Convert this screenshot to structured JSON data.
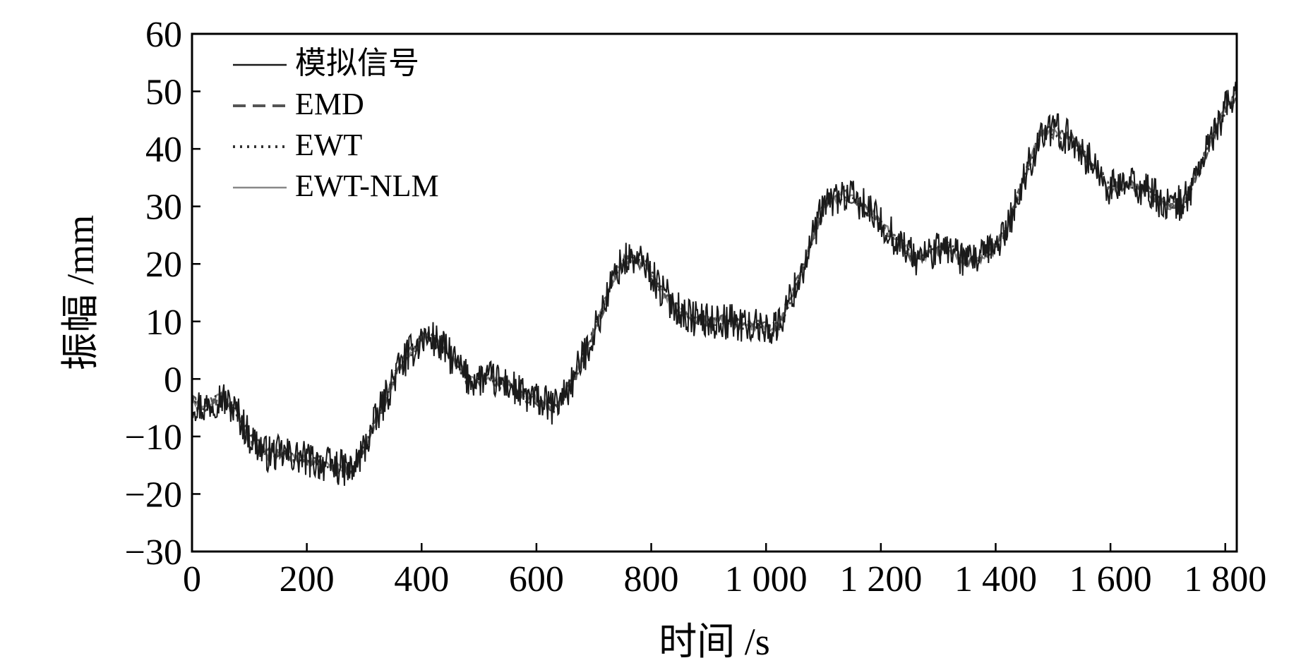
{
  "chart_data": {
    "type": "line",
    "xlabel": "时间 /s",
    "ylabel": "振幅 /mm",
    "xlim": [
      0,
      1820
    ],
    "ylim": [
      -30,
      60
    ],
    "x_ticks": [
      0,
      200,
      400,
      600,
      800,
      1000,
      1200,
      1400,
      1600,
      1800
    ],
    "x_tick_labels": [
      "0",
      "200",
      "400",
      "600",
      "800",
      "1 000",
      "1 200",
      "1 400",
      "1 600",
      "1 800"
    ],
    "y_ticks": [
      -30,
      -20,
      -10,
      0,
      10,
      20,
      30,
      40,
      50,
      60
    ],
    "y_tick_labels": [
      "−30",
      "−20",
      "−10",
      "0",
      "10",
      "20",
      "30",
      "40",
      "50",
      "60"
    ],
    "grid": false,
    "legend_position": "top-left",
    "trend": {
      "x": [
        0,
        20,
        50,
        80,
        100,
        130,
        160,
        200,
        240,
        280,
        300,
        330,
        360,
        400,
        420,
        450,
        480,
        520,
        550,
        580,
        610,
        630,
        660,
        700,
        740,
        760,
        790,
        820,
        860,
        900,
        940,
        980,
        1020,
        1060,
        1100,
        1130,
        1160,
        1200,
        1230,
        1260,
        1290,
        1320,
        1350,
        1390,
        1420,
        1450,
        1480,
        1510,
        1540,
        1570,
        1600,
        1630,
        1660,
        1700,
        1730,
        1760,
        1790,
        1820
      ],
      "y": [
        -4,
        -5,
        -3,
        -6,
        -10,
        -13,
        -13,
        -14,
        -15,
        -16,
        -12,
        -5,
        2,
        7,
        7,
        4,
        0,
        0,
        -1,
        -3,
        -4,
        -5,
        -1,
        8,
        19,
        21,
        20,
        15,
        11,
        10,
        10,
        9,
        9,
        18,
        30,
        32,
        31,
        27,
        24,
        21,
        22,
        23,
        20,
        22,
        26,
        35,
        43,
        43,
        41,
        37,
        33,
        34,
        33,
        30,
        31,
        38,
        45,
        50
      ]
    },
    "series": [
      {
        "name": "模拟信号",
        "color": "#1a1a1a",
        "dash": "solid",
        "noise_amplitude": 3.2
      },
      {
        "name": "EMD",
        "color": "#555555",
        "dash": "dashed",
        "noise_amplitude": 1.2
      },
      {
        "name": "EWT",
        "color": "#333333",
        "dash": "dotted",
        "noise_amplitude": 1.0
      },
      {
        "name": "EWT-NLM",
        "color": "#888888",
        "dash": "solid",
        "noise_amplitude": 0.8
      }
    ]
  }
}
